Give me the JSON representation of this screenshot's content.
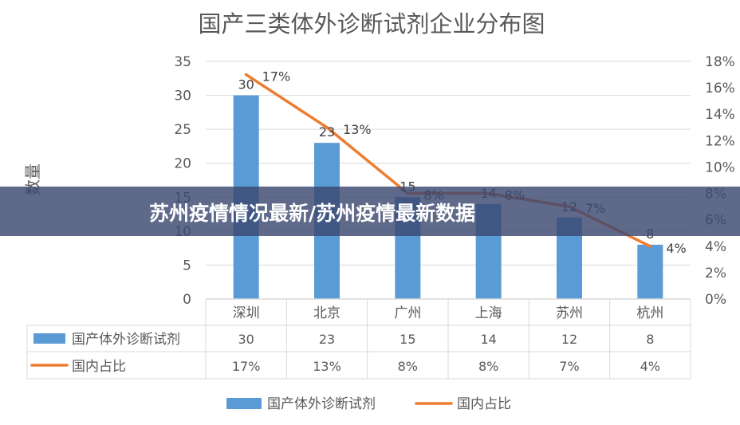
{
  "chart_data": {
    "type": "bar",
    "title": "国产三类体外诊断试剂企业分布图",
    "ylabel": "数量",
    "categories": [
      "深圳",
      "北京",
      "广州",
      "上海",
      "苏州",
      "杭州"
    ],
    "ylim": [
      0,
      35
    ],
    "y_ticks": [
      "0",
      "5",
      "10",
      "15",
      "20",
      "25",
      "30",
      "35"
    ],
    "y2lim": [
      0,
      18
    ],
    "y2_ticks": [
      "0%",
      "2%",
      "4%",
      "6%",
      "8%",
      "10%",
      "12%",
      "14%",
      "16%",
      "18%"
    ],
    "grid": true,
    "legend": "bottom",
    "series": [
      {
        "name": "国产体外诊断试剂",
        "type": "bar",
        "axis": "left",
        "color": "#5b9bd5",
        "values": [
          30,
          23,
          15,
          14,
          12,
          8
        ],
        "labels": [
          "30",
          "23",
          "15",
          "14",
          "12",
          "8"
        ]
      },
      {
        "name": "国内占比",
        "type": "line",
        "axis": "right",
        "color": "#ed7d31",
        "values": [
          17,
          13,
          8,
          8,
          7,
          4
        ],
        "labels": [
          "17%",
          "13%",
          "8%",
          "8%",
          "7%",
          "4%"
        ]
      }
    ]
  },
  "banner": {
    "text": "苏州疫情情况最新/苏州疫情最新数据",
    "background": "#3c4870"
  }
}
